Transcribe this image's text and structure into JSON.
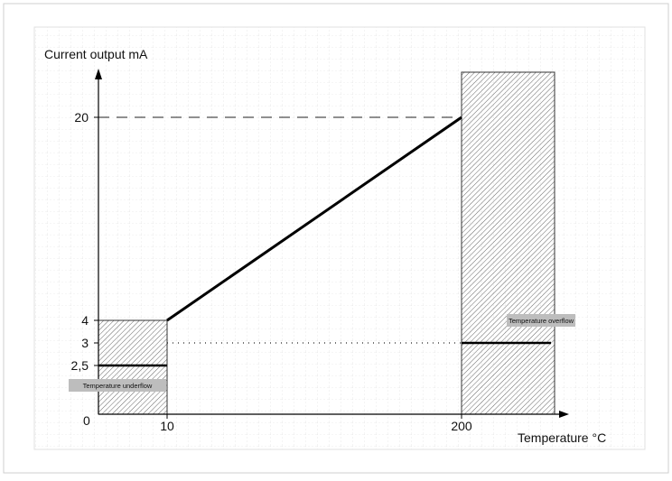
{
  "chart_data": {
    "type": "line",
    "ylabel": "Current output mA",
    "xlabel": "Temperature °C",
    "origin_label": "0",
    "x_ticks": [
      {
        "value": 10,
        "label": "10"
      },
      {
        "value": 200,
        "label": "200"
      }
    ],
    "y_ticks": [
      {
        "value": 20,
        "label": "20"
      },
      {
        "value": 4,
        "label": "4"
      },
      {
        "value": 3,
        "label": "3"
      },
      {
        "value": 2.5,
        "label": "2,5"
      }
    ],
    "series": [
      {
        "points": [
          [
            10,
            4
          ],
          [
            200,
            20
          ]
        ]
      }
    ],
    "underflow": {
      "label": "Temperature underflow",
      "x_range": [
        0,
        10
      ],
      "y_range": [
        0,
        4
      ],
      "output": 2.5
    },
    "overflow": {
      "label": "Temperature overflow",
      "x_range": [
        200,
        260
      ],
      "y_range": [
        0,
        22.5
      ],
      "output": 3
    },
    "reference_lines": [
      {
        "y": 20,
        "x_range": [
          0,
          200
        ],
        "style": "dashed"
      },
      {
        "y": 3,
        "x_range": [
          10,
          200
        ],
        "style": "dotted"
      }
    ],
    "grid": true
  }
}
